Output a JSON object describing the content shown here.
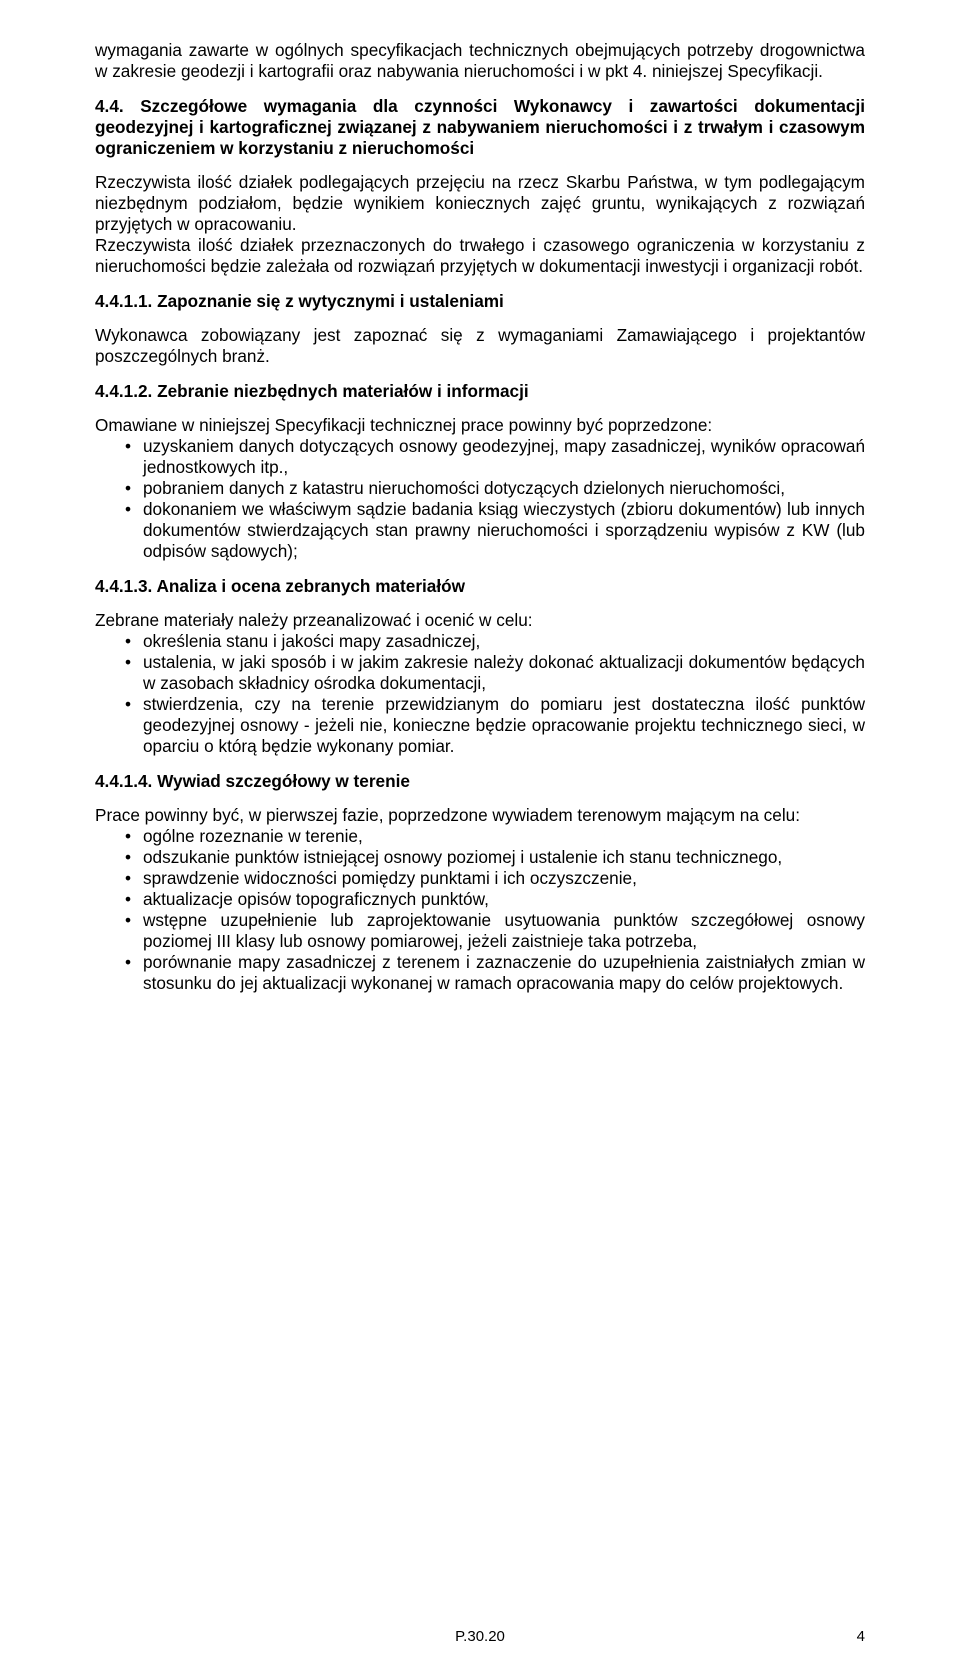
{
  "intro_para": "wymagania zawarte w ogólnych specyfikacjach technicznych obejmujących potrzeby drogownictwa w zakresie geodezji i kartografii oraz nabywania nieruchomości i w pkt 4. niniejszej Specyfikacji.",
  "s44": {
    "heading": "4.4. Szczegółowe wymagania dla czynności Wykonawcy i zawartości dokumentacji geodezyjnej i kartograficznej związanej z nabywaniem nieruchomości i z trwałym i czasowym ograniczeniem w korzystaniu z nieruchomości",
    "body": "Rzeczywista ilość działek podlegających przejęciu na rzecz Skarbu Państwa, w tym podlegającym niezbędnym podziałom, będzie wynikiem koniecznych zajęć gruntu, wynikających z rozwiązań przyjętych w opracowaniu.\nRzeczywista ilość działek przeznaczonych do trwałego i czasowego ograniczenia w korzystaniu z nieruchomości będzie zależała od rozwiązań przyjętych w dokumentacji inwestycji i organizacji robót."
  },
  "s4411": {
    "heading": "4.4.1.1.  Zapoznanie się z wytycznymi i ustaleniami",
    "body": "Wykonawca zobowiązany jest zapoznać się z wymaganiami Zamawiającego i projektantów poszczególnych branż."
  },
  "s4412": {
    "heading": "4.4.1.2.  Zebranie niezbędnych materiałów i informacji",
    "intro": "Omawiane w niniejszej Specyfikacji technicznej prace powinny być poprzedzone:",
    "items": [
      "uzyskaniem danych dotyczących osnowy geodezyjnej, mapy zasadniczej, wyników opracowań jednostkowych itp.,",
      "pobraniem danych z katastru nieruchomości dotyczących dzielonych nieruchomości,",
      "dokonaniem we właściwym sądzie badania ksiąg wieczystych (zbioru dokumentów) lub innych dokumentów stwierdzających stan prawny nieruchomości i sporządzeniu wypisów z KW (lub odpisów sądowych);"
    ]
  },
  "s4413": {
    "heading": "4.4.1.3.  Analiza i ocena zebranych materiałów",
    "intro": "Zebrane materiały należy przeanalizować i ocenić w celu:",
    "items": [
      "określenia stanu i jakości mapy zasadniczej,",
      "ustalenia, w jaki sposób i w jakim zakresie należy dokonać aktualizacji dokumentów będących w zasobach składnicy ośrodka dokumentacji,",
      "stwierdzenia, czy na terenie przewidzianym do pomiaru jest dostateczna ilość punktów geodezyjnej osnowy - jeżeli nie, konieczne będzie opracowanie projektu technicznego sieci, w oparciu o którą będzie wykonany pomiar."
    ]
  },
  "s4414": {
    "heading": "4.4.1.4.  Wywiad szczegółowy w terenie",
    "intro": "Prace powinny być, w pierwszej fazie, poprzedzone wywiadem terenowym mającym na celu:",
    "items": [
      "ogólne rozeznanie w terenie,",
      "odszukanie punktów istniejącej osnowy poziomej i ustalenie ich stanu technicznego,",
      "sprawdzenie widoczności pomiędzy punktami i ich oczyszczenie,",
      "aktualizacje opisów topograficznych punktów,",
      "wstępne uzupełnienie lub zaprojektowanie usytuowania punktów szczegółowej osnowy poziomej III klasy lub osnowy pomiarowej, jeżeli zaistnieje taka potrzeba,",
      "porównanie mapy zasadniczej z terenem i zaznaczenie do uzupełnienia zaistniałych zmian w stosunku do jej aktualizacji wykonanej w ramach opracowania mapy do celów projektowych."
    ]
  },
  "footer": {
    "code": "P.30.20",
    "page": "4"
  }
}
